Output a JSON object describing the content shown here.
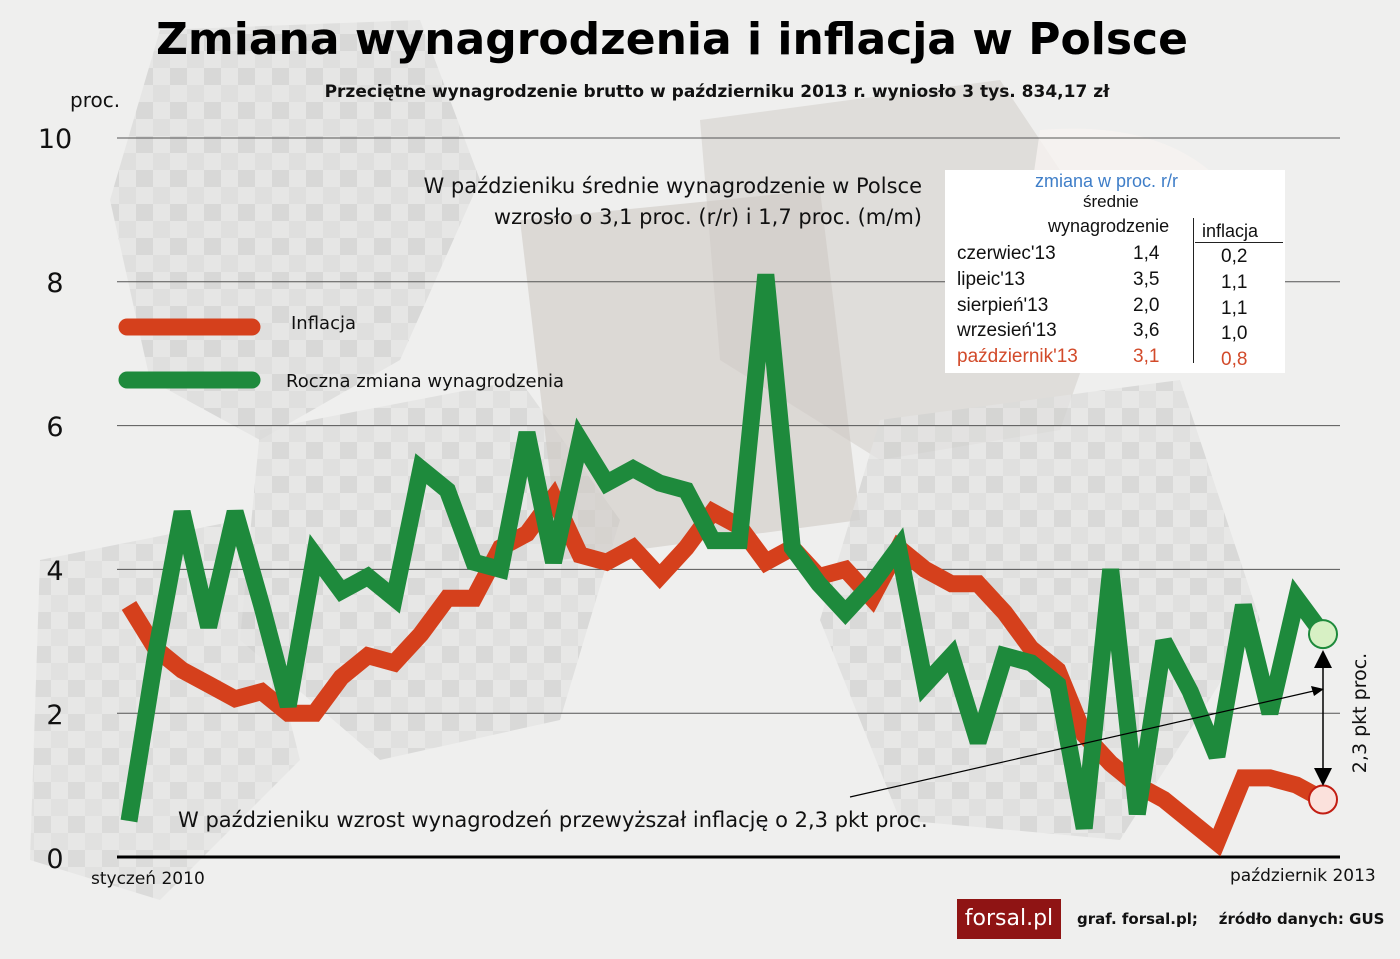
{
  "title": "Zmiana wynagrodzenia i inflacja w Polsce",
  "subtitle": "Przeciętne wynagrodzenie brutto w październiku 2013 r. wyniosło 3 tys. 834,17 zł",
  "annotations": {
    "top_line1": "W paździeniku średnie wynagrodzenie w Polsce",
    "top_line2": "wzrosło o 3,1 proc. (r/r) i 1,7 proc. (m/m)",
    "bottom": "W paździeniku wzrost wynagrodzeń przewyższał inflację o 2,3 pkt proc.",
    "gap_label": "2,3 pkt proc."
  },
  "table": {
    "header_title": "zmiana w proc. r/r",
    "col_salary_line1": "średnie",
    "col_salary_line2": "wynagrodzenie",
    "col_inflation": "inflacja",
    "rows": [
      {
        "month": "czerwiec'13",
        "salary": "1,4",
        "inflation": "0,2"
      },
      {
        "month": "lipeic'13",
        "salary": "3,5",
        "inflation": "1,1"
      },
      {
        "month": "sierpień'13",
        "salary": "2,0",
        "inflation": "1,1"
      },
      {
        "month": "wrzesień'13",
        "salary": "3,6",
        "inflation": "1,0"
      },
      {
        "month": "październik'13",
        "salary": "3,1",
        "inflation": "0,8"
      }
    ]
  },
  "footer": {
    "logo_text": "forsal.pl",
    "credit": "graf. forsal.pl;",
    "source": "źródło danych: GUS"
  },
  "colors": {
    "inflation": "#d5401c",
    "salary": "#1e8a3c",
    "table_header": "#3f7ec8",
    "highlight_row": "#d24a2a"
  },
  "chart_data": {
    "type": "line",
    "ylabel": "proc.",
    "ylim": [
      0,
      10
    ],
    "yticks": [
      "0",
      "2",
      "4",
      "6",
      "8",
      "10"
    ],
    "x_start_label": "styczeń 2010",
    "x_end_label": "październik 2013",
    "grid": true,
    "legend_position": "top-left",
    "series": [
      {
        "name": "Inflacja",
        "color": "#d5401c",
        "values": [
          3.5,
          2.9,
          2.6,
          2.4,
          2.2,
          2.3,
          2.0,
          2.0,
          2.5,
          2.8,
          2.7,
          3.1,
          3.6,
          3.6,
          4.3,
          4.5,
          5.0,
          4.2,
          4.1,
          4.3,
          3.9,
          4.3,
          4.8,
          4.6,
          4.1,
          4.3,
          3.9,
          4.0,
          3.6,
          4.3,
          4.0,
          3.8,
          3.8,
          3.4,
          2.9,
          2.6,
          1.7,
          1.3,
          1.0,
          0.8,
          0.5,
          0.2,
          1.1,
          1.1,
          1.0,
          0.8
        ]
      },
      {
        "name": "Roczna zmiana wynagrodzenia",
        "color": "#1e8a3c",
        "values": [
          0.5,
          2.8,
          4.8,
          3.2,
          4.8,
          3.5,
          2.1,
          4.2,
          3.7,
          3.9,
          3.6,
          5.4,
          5.1,
          4.1,
          4.0,
          5.9,
          4.1,
          5.8,
          5.2,
          5.4,
          5.2,
          5.1,
          4.4,
          4.4,
          8.1,
          4.3,
          3.8,
          3.4,
          3.8,
          4.3,
          2.4,
          2.8,
          1.6,
          2.8,
          2.7,
          2.4,
          0.4,
          4.0,
          0.6,
          3.0,
          2.3,
          1.4,
          3.5,
          2.0,
          3.6,
          3.1
        ]
      }
    ]
  }
}
